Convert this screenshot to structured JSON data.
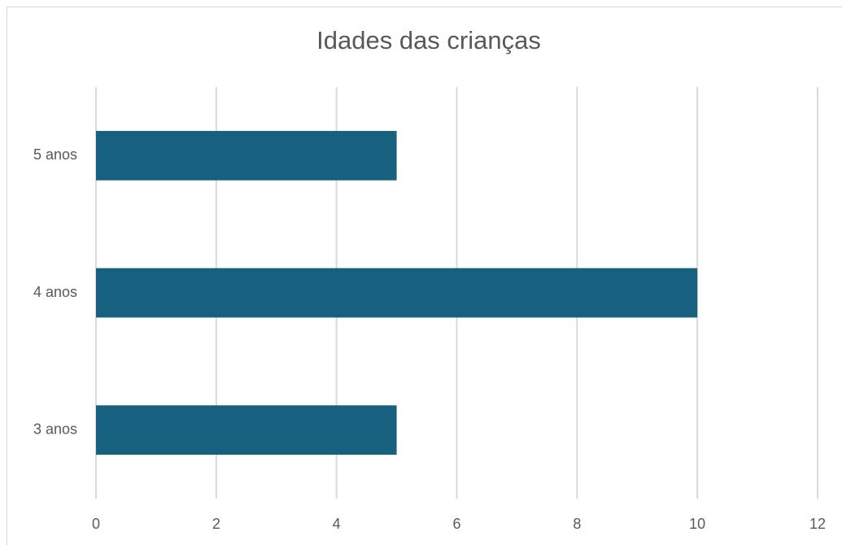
{
  "chart_data": {
    "type": "bar",
    "orientation": "horizontal",
    "title": "Idades das crianças",
    "categories": [
      "3 anos",
      "4 anos",
      "5 anos"
    ],
    "values": [
      5,
      10,
      5
    ],
    "color": "#17607f",
    "xlim": [
      0,
      12
    ],
    "xticks": [
      0,
      2,
      4,
      6,
      8,
      10,
      12
    ],
    "grid": true
  }
}
